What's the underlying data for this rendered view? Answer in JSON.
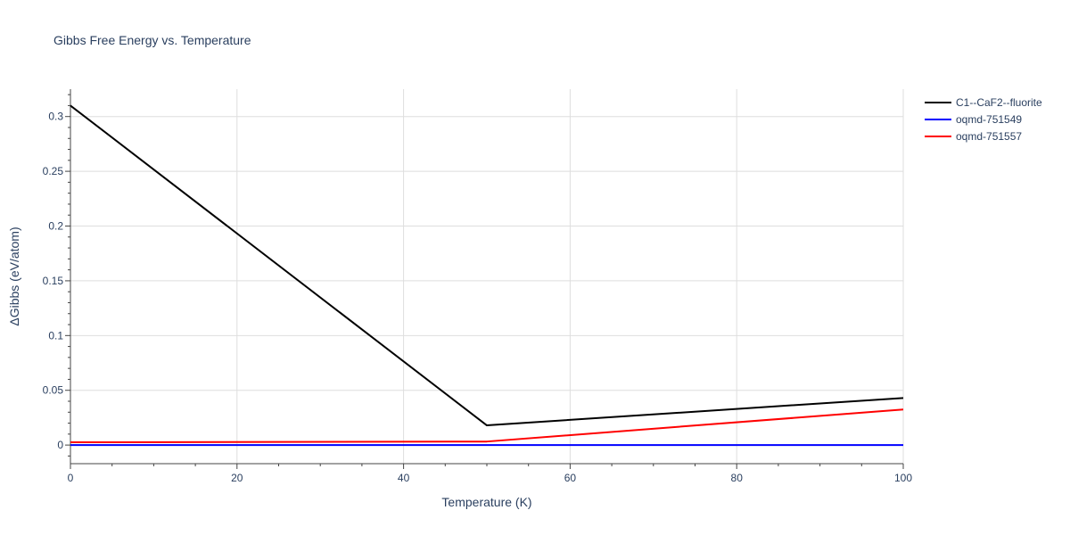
{
  "chart_data": {
    "type": "line",
    "title": "Gibbs Free Energy vs. Temperature",
    "xlabel": "Temperature (K)",
    "ylabel": "ΔGibbs (eV/atom)",
    "xlim": [
      0,
      100
    ],
    "ylim": [
      -0.017,
      0.325
    ],
    "x_ticks": [
      0,
      20,
      40,
      60,
      80,
      100
    ],
    "x_tick_labels": [
      "0",
      "20",
      "40",
      "60",
      "80",
      "100"
    ],
    "y_ticks": [
      0,
      0.05,
      0.1,
      0.15,
      0.2,
      0.25,
      0.3
    ],
    "y_tick_labels": [
      "0",
      "0.05",
      "0.1",
      "0.15",
      "0.2",
      "0.25",
      "0.3"
    ],
    "grid": true,
    "legend_position": "top-right outside",
    "series": [
      {
        "name": "C1--CaF2--fluorite",
        "color": "#000000",
        "x": [
          0,
          50,
          100
        ],
        "y": [
          0.31,
          0.018,
          0.043
        ]
      },
      {
        "name": "oqmd-751549",
        "color": "#0000ff",
        "x": [
          0,
          50,
          100
        ],
        "y": [
          0.0,
          0.0,
          0.0
        ]
      },
      {
        "name": "oqmd-751557",
        "color": "#ff0000",
        "x": [
          0,
          50,
          100
        ],
        "y": [
          0.0025,
          0.0032,
          0.0325
        ]
      }
    ]
  }
}
